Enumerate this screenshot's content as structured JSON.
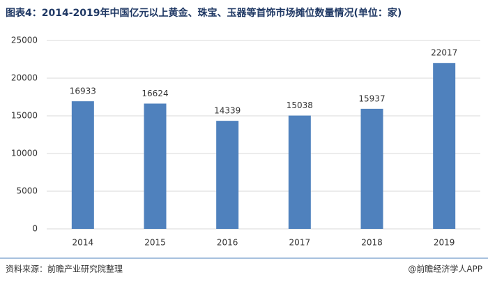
{
  "chart_data": {
    "type": "bar",
    "title": "图表4：2014-2019年中国亿元以上黄金、珠宝、玉器等首饰市场摊位数量情况(单位：家)",
    "categories": [
      "2014",
      "2015",
      "2016",
      "2017",
      "2018",
      "2019"
    ],
    "values": [
      16933,
      16624,
      14339,
      15038,
      15937,
      22017
    ],
    "color": "#4f81bd",
    "ylim": [
      0,
      25000
    ],
    "yticks": [
      0,
      5000,
      10000,
      15000,
      20000,
      25000
    ],
    "grid": true
  },
  "source": "资料来源：前瞻产业研究院整理",
  "credit": "@前瞻经济学人APP"
}
